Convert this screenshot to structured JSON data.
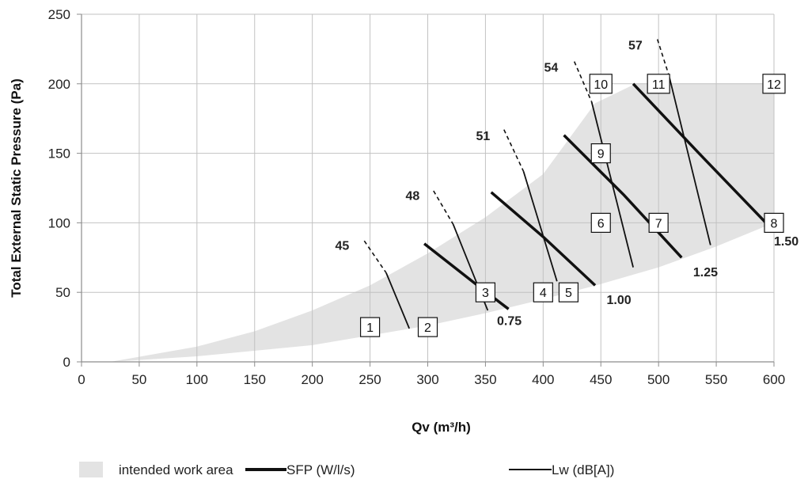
{
  "chart_data": {
    "type": "line",
    "xlabel": "Qv (m³/h)",
    "ylabel": "Total External Static Pressure (Pa)",
    "xlim": [
      0,
      600
    ],
    "ylim": [
      0,
      250
    ],
    "x_ticks": [
      0,
      50,
      100,
      150,
      200,
      250,
      300,
      350,
      400,
      450,
      500,
      550,
      600
    ],
    "y_ticks": [
      0,
      50,
      100,
      150,
      200,
      250
    ],
    "grid": true,
    "legend_position": "bottom",
    "legend": {
      "area": "intended work area",
      "sfp": "SFP (W/l/s)",
      "lw": "Lw (dB[A])"
    },
    "colors": {
      "area": "#e3e3e3",
      "grid": "#c2c2c2",
      "axis": "#8c8c8c",
      "lines": "#111111"
    },
    "work_area": {
      "lower": [
        [
          25,
          0
        ],
        [
          100,
          4
        ],
        [
          200,
          12
        ],
        [
          300,
          26
        ],
        [
          350,
          35
        ],
        [
          400,
          45
        ],
        [
          450,
          56
        ],
        [
          500,
          68
        ],
        [
          550,
          83
        ],
        [
          600,
          100
        ]
      ],
      "upper": [
        [
          25,
          0
        ],
        [
          100,
          11
        ],
        [
          150,
          22
        ],
        [
          200,
          37
        ],
        [
          250,
          55
        ],
        [
          300,
          78
        ],
        [
          350,
          104
        ],
        [
          400,
          135
        ],
        [
          445,
          186
        ],
        [
          480,
          200
        ],
        [
          600,
          200
        ]
      ]
    },
    "sfp_series": [
      {
        "name": "0.75",
        "points": [
          [
            297,
            85
          ],
          [
            340,
            57
          ],
          [
            370,
            38
          ]
        ],
        "label_at": [
          360,
          30
        ]
      },
      {
        "name": "1.00",
        "points": [
          [
            355,
            122
          ],
          [
            400,
            90
          ],
          [
            445,
            55
          ]
        ],
        "label_at": [
          455,
          45
        ]
      },
      {
        "name": "1.25",
        "points": [
          [
            418,
            163
          ],
          [
            470,
            120
          ],
          [
            520,
            75
          ]
        ],
        "label_at": [
          530,
          65
        ]
      },
      {
        "name": "1.50",
        "points": [
          [
            478,
            200
          ],
          [
            535,
            150
          ],
          [
            593,
            100
          ]
        ],
        "label_at": [
          600,
          87
        ]
      }
    ],
    "lw_series": [
      {
        "name": "45",
        "dashed": [
          [
            245,
            87
          ],
          [
            264,
            64
          ]
        ],
        "solid": [
          [
            264,
            64
          ],
          [
            284,
            24
          ]
        ],
        "label_at": [
          232,
          84
        ]
      },
      {
        "name": "48",
        "dashed": [
          [
            305,
            123
          ],
          [
            322,
            99
          ]
        ],
        "solid": [
          [
            322,
            99
          ],
          [
            352,
            37
          ]
        ],
        "label_at": [
          293,
          120
        ]
      },
      {
        "name": "51",
        "dashed": [
          [
            366,
            167
          ],
          [
            383,
            137
          ]
        ],
        "solid": [
          [
            383,
            137
          ],
          [
            412,
            58
          ]
        ],
        "label_at": [
          354,
          163
        ]
      },
      {
        "name": "54",
        "dashed": [
          [
            427,
            216
          ],
          [
            442,
            187
          ]
        ],
        "solid": [
          [
            442,
            187
          ],
          [
            478,
            68
          ]
        ],
        "label_at": [
          413,
          212
        ]
      },
      {
        "name": "57",
        "dashed": [
          [
            499,
            232
          ],
          [
            509,
            206
          ]
        ],
        "solid": [
          [
            509,
            206
          ],
          [
            545,
            84
          ]
        ],
        "label_at": [
          486,
          228
        ]
      }
    ],
    "operating_points": [
      {
        "label": "1",
        "x": 250,
        "y": 25
      },
      {
        "label": "2",
        "x": 300,
        "y": 25
      },
      {
        "label": "3",
        "x": 350,
        "y": 50
      },
      {
        "label": "4",
        "x": 400,
        "y": 50
      },
      {
        "label": "5",
        "x": 422,
        "y": 50
      },
      {
        "label": "6",
        "x": 450,
        "y": 100
      },
      {
        "label": "7",
        "x": 500,
        "y": 100
      },
      {
        "label": "8",
        "x": 600,
        "y": 100
      },
      {
        "label": "9",
        "x": 450,
        "y": 150
      },
      {
        "label": "10",
        "x": 450,
        "y": 200
      },
      {
        "label": "11",
        "x": 500,
        "y": 200
      },
      {
        "label": "12",
        "x": 600,
        "y": 200
      }
    ]
  }
}
